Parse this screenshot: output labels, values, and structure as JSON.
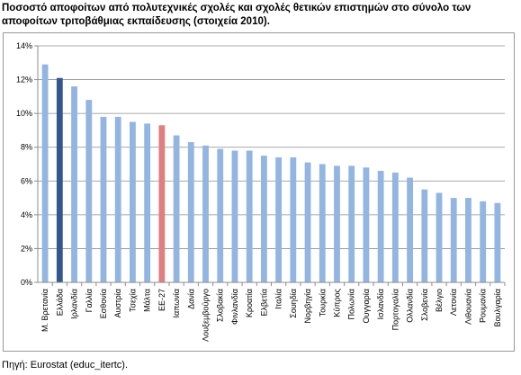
{
  "title": "Ποσοστό αποφοίτων από πολυτεχνικές σχολές και σχολές θετικών επιστημών στο σύνολο των αποφοίτων τριτοβάθμιας εκπαίδευσης (στοιχεία 2010).",
  "source": "Πηγή: Eurostat (educ_itertc).",
  "colors": {
    "default": "#93b5e1",
    "highlight_greece": "#33588f",
    "highlight_eu": "#e07f7f",
    "gridline": "#8c8c8c",
    "axis": "#8c8c8c"
  },
  "chart_data": {
    "type": "bar",
    "categories": [
      "Μ. Βρετανία",
      "Ελλάδα",
      "Ιρλανδία",
      "Γαλλία",
      "Εσθονία",
      "Αυστρία",
      "Τσεχία",
      "Μάλτα",
      "ΕΕ-27",
      "Ιαπωνία",
      "Δανία",
      "Λουξεμβούργο",
      "Σλοβακία",
      "Φινλανδία",
      "Κροατία",
      "Ελβετία",
      "Ιταλία",
      "Σουηδία",
      "Νορβηγία",
      "Τουρκία",
      "Κύπρος",
      "Πολωνία",
      "Ουγγαρία",
      "Ισλανδία",
      "Πορτογαλία",
      "Ολλανδία",
      "Σλοβενία",
      "Βέλγιο",
      "Λετονία",
      "Λιθουανία",
      "Ρουμανία",
      "Βουλγαρία"
    ],
    "values": [
      12.9,
      12.1,
      11.6,
      10.8,
      9.8,
      9.8,
      9.5,
      9.4,
      9.3,
      8.7,
      8.3,
      8.1,
      7.9,
      7.8,
      7.8,
      7.5,
      7.4,
      7.4,
      7.1,
      7.0,
      6.9,
      6.9,
      6.8,
      6.6,
      6.5,
      6.2,
      5.5,
      5.3,
      5.0,
      5.0,
      4.8,
      4.7
    ],
    "highlight": {
      "Ελλάδα": "highlight_greece",
      "ΕΕ-27": "highlight_eu"
    },
    "ylim": [
      0,
      14
    ],
    "yticks": [
      0,
      2,
      4,
      6,
      8,
      10,
      12,
      14
    ],
    "ytick_labels": [
      "0%",
      "2%",
      "4%",
      "6%",
      "8%",
      "10%",
      "12%",
      "14%"
    ],
    "grid": true,
    "xlabel": "",
    "ylabel": ""
  }
}
